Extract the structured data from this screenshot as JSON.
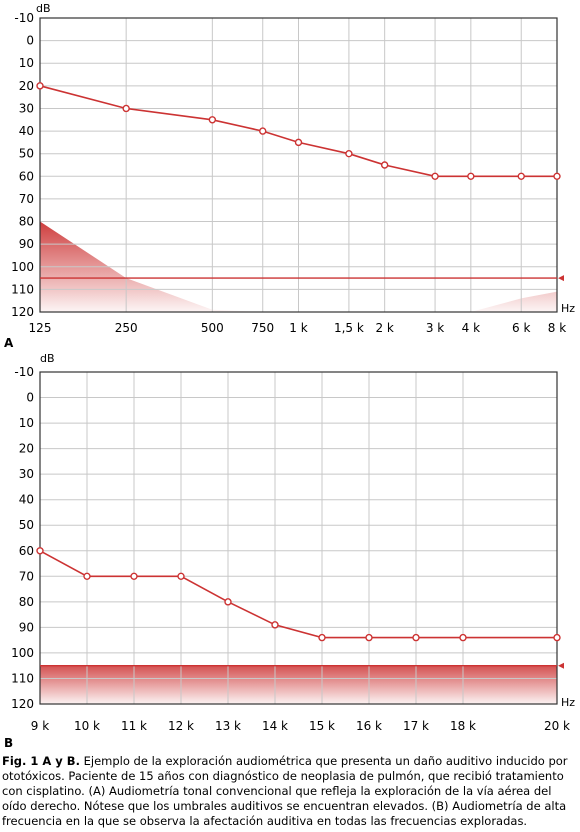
{
  "chart_data": [
    {
      "panel_label": "A",
      "type": "line",
      "y_unit": "dB",
      "x_unit": "Hz",
      "yticks": [
        "-10",
        "0",
        "10",
        "20",
        "30",
        "40",
        "50",
        "60",
        "70",
        "80",
        "90",
        "100",
        "110",
        "120"
      ],
      "ylim": [
        -10,
        120
      ],
      "y_inverted": true,
      "categories": [
        "125",
        "250",
        "500",
        "750",
        "1 k",
        "1,5 k",
        "2 k",
        "3 k",
        "4 k",
        "6 k",
        "8 k"
      ],
      "x_scale": "log",
      "values": [
        20,
        30,
        35,
        40,
        45,
        50,
        55,
        60,
        60,
        60,
        60
      ],
      "reference_line": 105,
      "shaded_region": [
        80,
        105,
        119,
        121,
        125,
        123,
        122,
        121,
        121,
        114,
        111
      ],
      "grid": true,
      "color": "#cc3333"
    },
    {
      "panel_label": "B",
      "type": "line",
      "y_unit": "dB",
      "x_unit": "Hz",
      "yticks": [
        "-10",
        "0",
        "10",
        "20",
        "30",
        "40",
        "50",
        "60",
        "70",
        "80",
        "90",
        "100",
        "110",
        "120"
      ],
      "ylim": [
        -10,
        120
      ],
      "y_inverted": true,
      "categories": [
        "9 k",
        "10 k",
        "11 k",
        "12 k",
        "13 k",
        "14 k",
        "15 k",
        "16 k",
        "17 k",
        "18 k",
        "20 k"
      ],
      "x_scale": "category",
      "values": [
        60,
        70,
        70,
        70,
        80,
        89,
        94,
        94,
        94,
        94,
        94
      ],
      "reference_line": 105,
      "shaded_band": [
        105,
        120
      ],
      "grid": true,
      "color": "#cc3333"
    }
  ],
  "caption": {
    "bold": "Fig. 1 A y B.",
    "text": " Ejemplo de la exploración audiométrica que presenta un daño auditivo inducido por ototóxicos. Paciente de 15 años con diagnóstico de neoplasia de pulmón, que recibió tratamiento con cisplatino. (A) Audiometría tonal convencional que refleja la exploración de la vía aérea del oído derecho. Nótese que los umbrales auditivos se encuentran elevados. (B) Audiometría de alta frecuencia en la que se observa la afectación auditiva en todas las frecuencias exploradas."
  }
}
